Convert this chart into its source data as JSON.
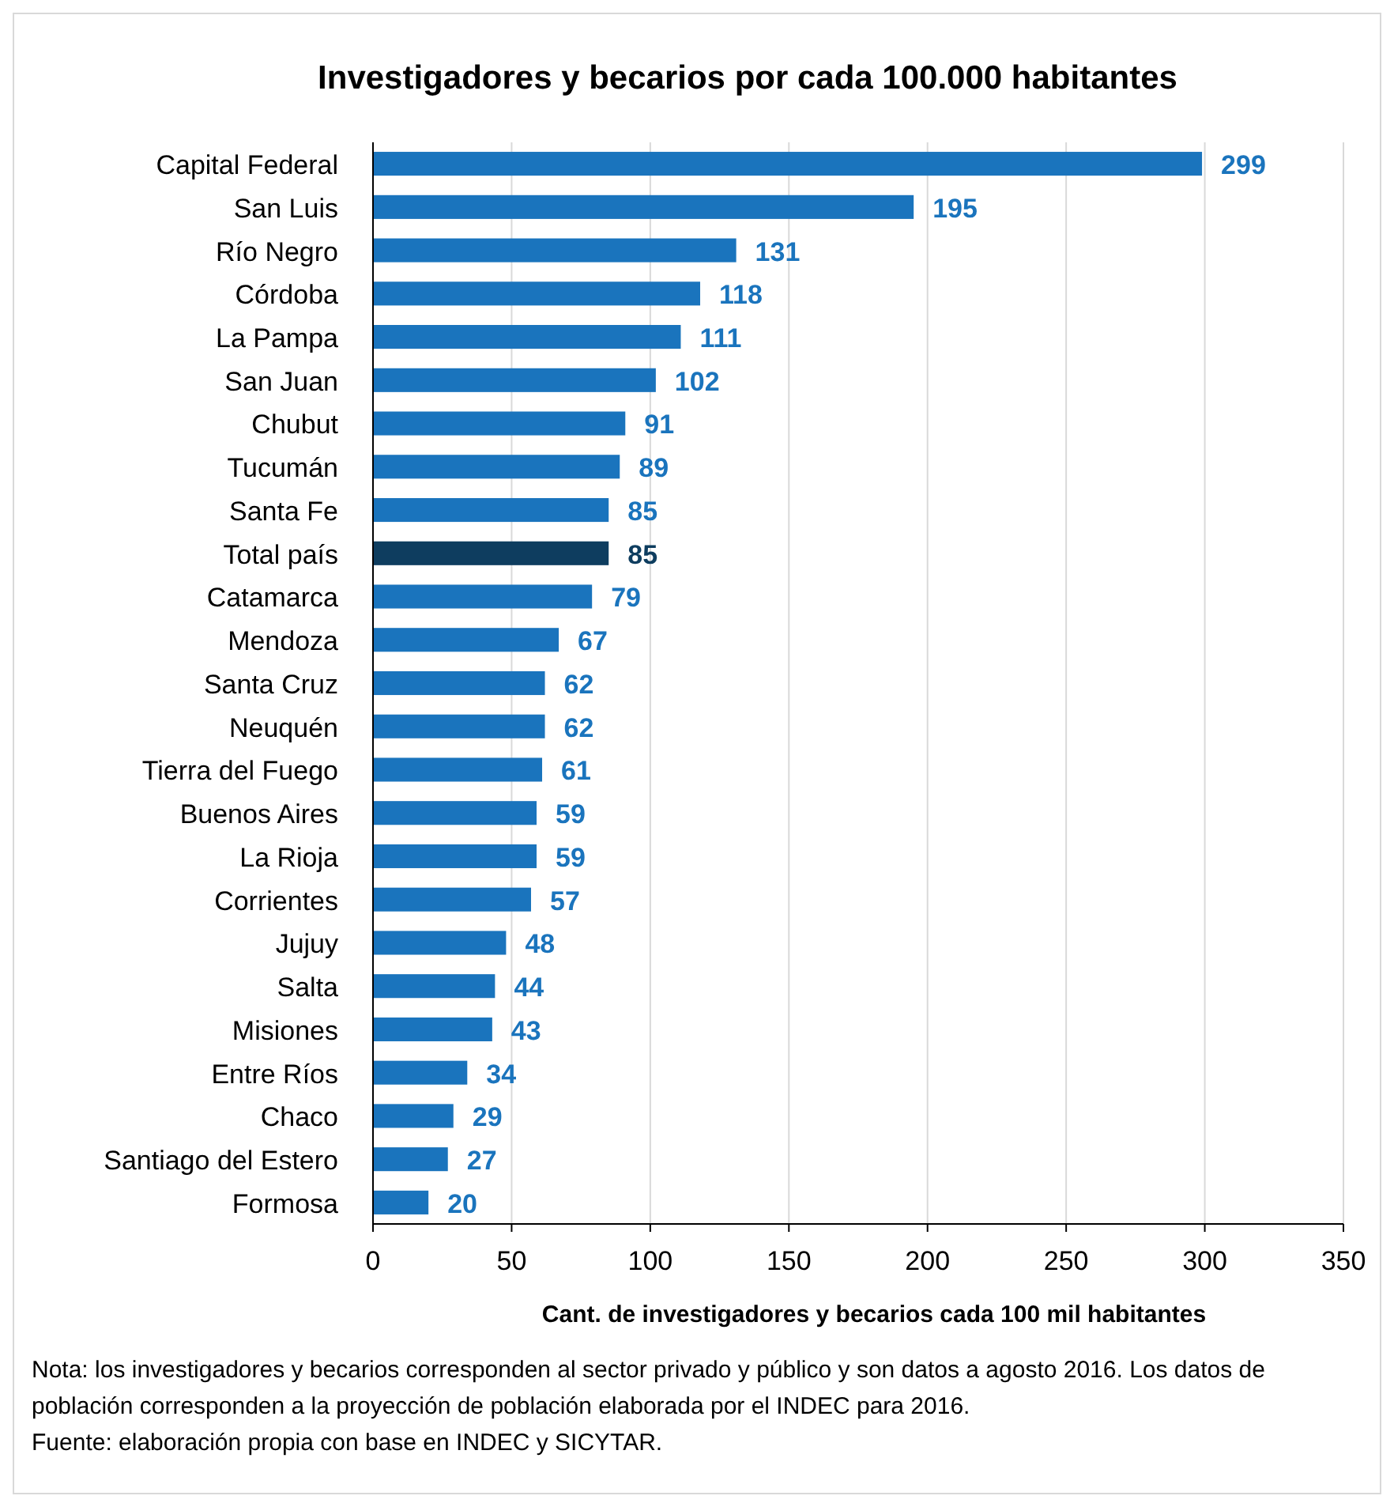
{
  "chart_data": {
    "type": "bar",
    "orientation": "horizontal",
    "title": "Investigadores y becarios por cada 100.000  habitantes",
    "xlabel": "Cant. de investigadores y becarios cada 100 mil habitantes",
    "categories": [
      "Capital Federal",
      "San Luis",
      "Río Negro",
      "Córdoba",
      "La Pampa",
      "San Juan",
      "Chubut",
      "Tucumán",
      "Santa Fe",
      "Total país",
      "Catamarca",
      "Mendoza",
      "Santa Cruz",
      "Neuquén",
      "Tierra del Fuego",
      "Buenos Aires",
      "La Rioja",
      "Corrientes",
      "Jujuy",
      "Salta",
      "Misiones",
      "Entre Ríos",
      "Chaco",
      "Santiago del Estero",
      "Formosa"
    ],
    "values": [
      299,
      195,
      131,
      118,
      111,
      102,
      91,
      89,
      85,
      85,
      79,
      67,
      62,
      62,
      61,
      59,
      59,
      57,
      48,
      44,
      43,
      34,
      29,
      27,
      20
    ],
    "colors": [
      "#1a74bd",
      "#1a74bd",
      "#1a74bd",
      "#1a74bd",
      "#1a74bd",
      "#1a74bd",
      "#1a74bd",
      "#1a74bd",
      "#1a74bd",
      "#0e3d5f",
      "#1a74bd",
      "#1a74bd",
      "#1a74bd",
      "#1a74bd",
      "#1a74bd",
      "#1a74bd",
      "#1a74bd",
      "#1a74bd",
      "#1a74bd",
      "#1a74bd",
      "#1a74bd",
      "#1a74bd",
      "#1a74bd",
      "#1a74bd",
      "#1a74bd"
    ],
    "xlim": [
      0,
      350
    ],
    "xticks": [
      0,
      50,
      100,
      150,
      200,
      250,
      300,
      350
    ],
    "grid": "x",
    "data_labels": true,
    "annotations": [
      "Nota: los investigadores y becarios corresponden al sector privado y público y son datos a agosto 2016. Los datos de población corresponden a la proyección de población elaborada por el INDEC para 2016.",
      "Fuente: elaboración propia con base en INDEC y SICYTAR."
    ]
  }
}
